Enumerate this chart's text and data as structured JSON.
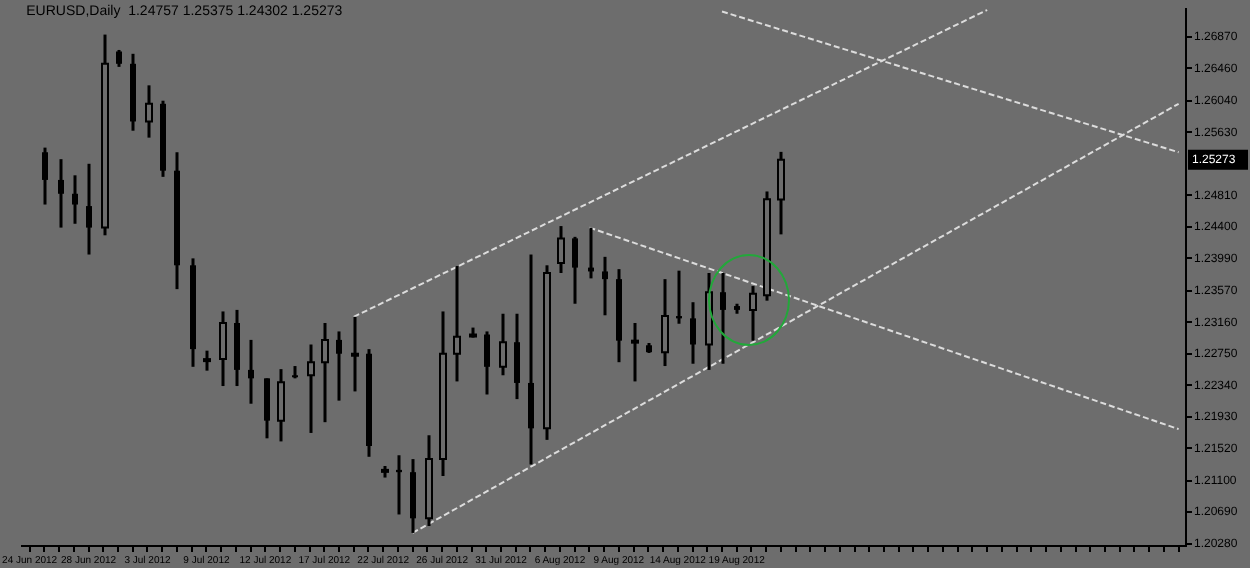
{
  "chart_data": {
    "type": "candlestick",
    "title": "EURUSD,Daily  1.24757 1.25375 1.24302 1.25273",
    "color": "#000000",
    "categories": [
      "24 Jun 2012",
      null,
      null,
      null,
      "28 Jun 2012",
      null,
      null,
      null,
      "3 Jul 2012",
      null,
      null,
      null,
      "9 Jul 2012",
      null,
      null,
      null,
      "12 Jul 2012",
      null,
      null,
      null,
      "17 Jul 2012",
      null,
      null,
      null,
      "22 Jul 2012",
      null,
      null,
      null,
      "26 Jul 2012",
      null,
      null,
      null,
      "31 Jul 2012",
      null,
      null,
      null,
      "6 Aug 2012",
      null,
      null,
      null,
      "9 Aug 2012",
      null,
      null,
      null,
      "14 Aug 2012",
      null,
      null,
      null,
      "19 Aug 2012",
      null,
      null,
      null,
      null,
      null,
      null,
      null,
      null,
      null,
      null,
      null,
      null,
      null,
      null,
      null,
      null,
      null,
      null,
      null,
      null,
      null,
      null,
      null,
      null,
      null,
      null,
      null,
      null,
      null,
      null
    ],
    "ohlc": [
      null,
      [
        1.2537,
        1.2543,
        1.2469,
        1.2501
      ],
      [
        1.2501,
        1.2528,
        1.2439,
        1.2483
      ],
      [
        1.2483,
        1.2507,
        1.2444,
        1.2469
      ],
      [
        1.2467,
        1.2522,
        1.2404,
        1.2439
      ],
      [
        1.2439,
        1.269,
        1.2429,
        1.2652
      ],
      [
        1.2668,
        1.267,
        1.2648,
        1.2652
      ],
      [
        1.2652,
        1.2665,
        1.2565,
        1.2577
      ],
      [
        1.2577,
        1.2624,
        1.2556,
        1.26
      ],
      [
        1.26,
        1.2604,
        1.2505,
        1.2513
      ],
      [
        1.2513,
        1.2537,
        1.2359,
        1.239
      ],
      [
        1.239,
        1.2399,
        1.2258,
        1.2281
      ],
      [
        1.2268,
        1.2279,
        1.2253,
        1.2268
      ],
      [
        1.2268,
        1.233,
        1.2233,
        1.2315
      ],
      [
        1.2315,
        1.2332,
        1.2233,
        1.2254
      ],
      [
        1.2254,
        1.2293,
        1.221,
        1.2243
      ],
      [
        1.2243,
        1.2243,
        1.2165,
        1.2188
      ],
      [
        1.2188,
        1.2255,
        1.2161,
        1.2238
      ],
      [
        1.2247,
        1.2259,
        1.2243,
        1.2245
      ],
      [
        1.2247,
        1.2287,
        1.2172,
        1.2264
      ],
      [
        1.2264,
        1.2315,
        1.2186,
        1.2293
      ],
      [
        1.2293,
        1.2304,
        1.2214,
        1.2275
      ],
      [
        1.2275,
        1.2323,
        1.2226,
        1.2275
      ],
      [
        1.2275,
        1.2281,
        1.2141,
        1.2155
      ],
      [
        1.2124,
        1.2129,
        1.2114,
        1.2124
      ],
      [
        1.2124,
        1.2143,
        1.2066,
        1.2121
      ],
      [
        1.2121,
        1.2138,
        1.2042,
        1.2061
      ],
      [
        1.2061,
        1.2169,
        1.2051,
        1.2138
      ],
      [
        1.2138,
        1.233,
        1.2116,
        1.2275
      ],
      [
        1.2275,
        1.2389,
        1.2239,
        1.2297
      ],
      [
        1.2299,
        1.2309,
        1.2296,
        1.23
      ],
      [
        1.23,
        1.2304,
        1.2222,
        1.2258
      ],
      [
        1.2258,
        1.2327,
        1.2247,
        1.229
      ],
      [
        1.229,
        1.2327,
        1.2216,
        1.2237
      ],
      [
        1.2237,
        1.2404,
        1.2131,
        1.2178
      ],
      [
        1.2178,
        1.239,
        1.2163,
        1.238
      ],
      [
        1.2393,
        1.2441,
        1.238,
        1.2425
      ],
      [
        1.2425,
        1.2427,
        1.234,
        1.2387
      ],
      [
        1.2387,
        1.2439,
        1.2373,
        1.2382
      ],
      [
        1.2382,
        1.2401,
        1.2325,
        1.2372
      ],
      [
        1.2372,
        1.2385,
        1.2264,
        1.2292
      ],
      [
        1.2292,
        1.2315,
        1.2239,
        1.2292
      ],
      [
        1.2286,
        1.2289,
        1.2276,
        1.2277
      ],
      [
        1.2277,
        1.2372,
        1.2259,
        1.2324
      ],
      [
        1.2324,
        1.2383,
        1.2314,
        1.2321
      ],
      [
        1.2321,
        1.2342,
        1.2262,
        1.2287
      ],
      [
        1.2287,
        1.238,
        1.2254,
        1.2355
      ],
      [
        1.2355,
        1.238,
        1.2262,
        1.2332
      ],
      [
        1.2337,
        1.234,
        1.2327,
        1.2332
      ],
      [
        1.2332,
        1.2363,
        1.2292,
        1.2353
      ],
      [
        1.2351,
        1.2486,
        1.2344,
        1.2476
      ],
      [
        1.24757,
        1.25375,
        1.24302,
        1.25273
      ],
      null,
      null,
      null,
      null,
      null,
      null,
      null,
      null,
      null,
      null,
      null,
      null,
      null,
      null,
      null,
      null,
      null,
      null,
      null,
      null,
      null,
      null,
      null,
      null,
      null,
      null,
      null
    ],
    "series": [
      {
        "type": "line",
        "color": "#dcdcdc",
        "values": [
          null,
          null,
          null,
          null,
          null,
          null,
          null,
          null,
          null,
          null,
          null,
          null,
          null,
          null,
          null,
          null,
          null,
          null,
          null,
          null,
          null,
          null,
          1.2323,
          null,
          null,
          null,
          null,
          null,
          null,
          null,
          null,
          null,
          null,
          null,
          null,
          null,
          null,
          null,
          null,
          null,
          null,
          null,
          null,
          null,
          null,
          null,
          null,
          null,
          null,
          null,
          null,
          null,
          null,
          null,
          null,
          null,
          null,
          null,
          null,
          null,
          null,
          null,
          null,
          null,
          null,
          1.2722,
          null,
          null,
          null,
          null,
          null,
          null,
          null,
          null,
          null,
          null,
          null,
          null,
          null
        ]
      },
      {
        "type": "line",
        "color": "#dcdcdc",
        "values": [
          null,
          null,
          null,
          null,
          null,
          null,
          null,
          null,
          null,
          null,
          null,
          null,
          null,
          null,
          null,
          null,
          null,
          null,
          null,
          null,
          null,
          null,
          null,
          null,
          null,
          null,
          1.2042,
          null,
          null,
          null,
          null,
          null,
          null,
          null,
          null,
          null,
          null,
          null,
          null,
          null,
          null,
          null,
          null,
          null,
          null,
          null,
          null,
          null,
          null,
          null,
          null,
          null,
          null,
          null,
          null,
          null,
          null,
          null,
          null,
          null,
          null,
          null,
          null,
          null,
          null,
          null,
          null,
          null,
          null,
          null,
          null,
          null,
          null,
          null,
          null,
          null,
          null,
          null,
          1.26
        ]
      },
      {
        "type": "line",
        "color": "#dcdcdc",
        "values": [
          null,
          null,
          null,
          null,
          null,
          null,
          null,
          null,
          null,
          null,
          null,
          null,
          null,
          null,
          null,
          null,
          null,
          null,
          null,
          null,
          null,
          null,
          null,
          null,
          null,
          null,
          null,
          null,
          null,
          null,
          null,
          null,
          null,
          null,
          null,
          null,
          null,
          null,
          1.2439,
          null,
          null,
          null,
          null,
          null,
          null,
          null,
          null,
          null,
          null,
          null,
          null,
          null,
          null,
          null,
          null,
          null,
          null,
          null,
          null,
          null,
          null,
          null,
          null,
          null,
          null,
          null,
          null,
          null,
          null,
          null,
          null,
          null,
          null,
          null,
          null,
          null,
          null,
          null,
          1.2177
        ]
      },
      {
        "type": "line",
        "color": "#dcdcdc",
        "values": [
          null,
          null,
          null,
          null,
          null,
          null,
          null,
          null,
          null,
          null,
          null,
          null,
          null,
          null,
          null,
          null,
          null,
          null,
          null,
          null,
          null,
          null,
          null,
          null,
          null,
          null,
          null,
          null,
          null,
          null,
          null,
          null,
          null,
          null,
          null,
          null,
          null,
          null,
          null,
          null,
          null,
          null,
          null,
          null,
          null,
          null,
          null,
          1.272,
          null,
          null,
          null,
          null,
          null,
          null,
          null,
          null,
          null,
          null,
          null,
          null,
          null,
          null,
          null,
          null,
          null,
          null,
          null,
          null,
          null,
          null,
          null,
          null,
          null,
          null,
          null,
          null,
          null,
          null,
          1.2537
        ]
      }
    ],
    "line_style": "dotted",
    "marker": "none",
    "ylim": [
      1.2025,
      1.2723
    ],
    "yticks": [
      {
        "value": 1.2028,
        "label": "1.20280"
      },
      {
        "value": 1.2069,
        "label": "1.20690"
      },
      {
        "value": 1.211,
        "label": "1.21100"
      },
      {
        "value": 1.2152,
        "label": "1.21520"
      },
      {
        "value": 1.2193,
        "label": "1.21930"
      },
      {
        "value": 1.2234,
        "label": "1.22340"
      },
      {
        "value": 1.2275,
        "label": "1.22750"
      },
      {
        "value": 1.2316,
        "label": "1.23160"
      },
      {
        "value": 1.2357,
        "label": "1.23570"
      },
      {
        "value": 1.2399,
        "label": "1.23990"
      },
      {
        "value": 1.244,
        "label": "1.24400"
      },
      {
        "value": 1.2481,
        "label": "1.24810"
      },
      {
        "value": 1.2563,
        "label": "1.25630"
      },
      {
        "value": 1.2604,
        "label": "1.26040"
      },
      {
        "value": 1.2646,
        "label": "1.26460"
      },
      {
        "value": 1.2687,
        "label": "1.26870"
      }
    ],
    "annotations": [
      "1.25273"
    ],
    "grid": false,
    "legend": false
  }
}
